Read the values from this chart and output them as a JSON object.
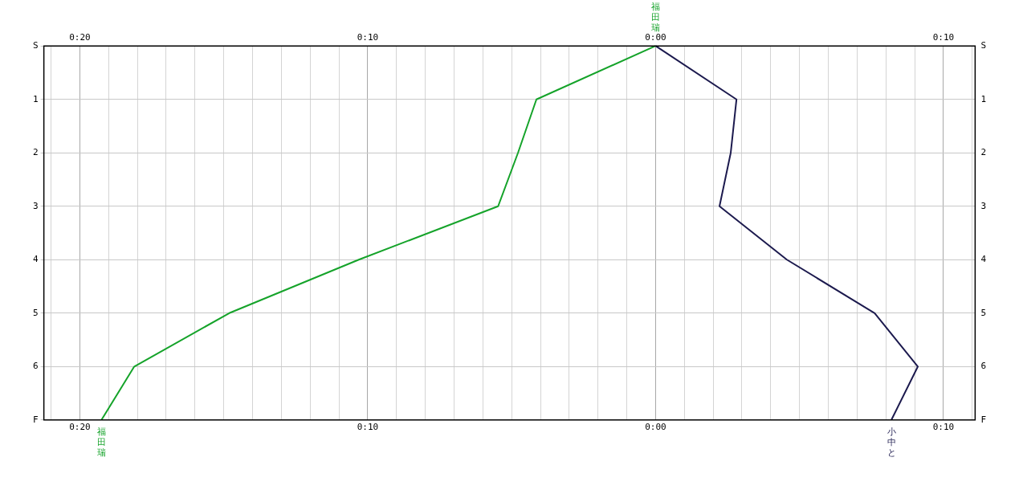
{
  "chart_data": {
    "type": "line",
    "orientation": "horizontal",
    "annotations": [
      {
        "text": "福田瑞",
        "x": 0,
        "y": "S"
      }
    ],
    "categories": [
      "S",
      "1",
      "2",
      "3",
      "4",
      "5",
      "6",
      "F"
    ],
    "xlim": [
      -21.25,
      11.1
    ],
    "xticks": [
      {
        "value": -21,
        "label": null
      },
      {
        "value": -20,
        "label": "0:20"
      },
      {
        "value": -19,
        "label": null
      },
      {
        "value": -18,
        "label": null
      },
      {
        "value": -17,
        "label": null
      },
      {
        "value": -16,
        "label": null
      },
      {
        "value": -15,
        "label": null
      },
      {
        "value": -14,
        "label": null
      },
      {
        "value": -13,
        "label": null
      },
      {
        "value": -12,
        "label": null
      },
      {
        "value": -11,
        "label": null
      },
      {
        "value": -10,
        "label": "0:10"
      },
      {
        "value": -9,
        "label": null
      },
      {
        "value": -8,
        "label": null
      },
      {
        "value": -7,
        "label": null
      },
      {
        "value": -6,
        "label": null
      },
      {
        "value": -5,
        "label": null
      },
      {
        "value": -4,
        "label": null
      },
      {
        "value": -3,
        "label": null
      },
      {
        "value": -2,
        "label": null
      },
      {
        "value": -1,
        "label": null
      },
      {
        "value": 0,
        "label": "0:00"
      },
      {
        "value": 1,
        "label": null
      },
      {
        "value": 2,
        "label": null
      },
      {
        "value": 3,
        "label": null
      },
      {
        "value": 4,
        "label": null
      },
      {
        "value": 5,
        "label": null
      },
      {
        "value": 6,
        "label": null
      },
      {
        "value": 7,
        "label": null
      },
      {
        "value": 8,
        "label": null
      },
      {
        "value": 9,
        "label": null
      },
      {
        "value": 10,
        "label": "0:10"
      },
      {
        "value": 11,
        "label": null
      }
    ],
    "x2lim": [
      -21.25,
      11.1
    ],
    "x2ticks": [
      {
        "value": -20,
        "label": "0:20"
      },
      {
        "value": -10,
        "label": "0:10"
      },
      {
        "value": 0,
        "label": "0:00"
      },
      {
        "value": 10,
        "label": "0:10"
      }
    ],
    "grid": true,
    "marker": "none",
    "line_style": "solid",
    "series": [
      {
        "name": "福田瑞",
        "color": "#15a32a",
        "values": [
          0,
          -4.14,
          -4.78,
          -5.47,
          -10.31,
          -14.81,
          -18.11,
          -19.25
        ]
      },
      {
        "name": "小中と",
        "color": "#1c1a4e",
        "values": [
          0,
          2.81,
          2.61,
          2.22,
          4.56,
          7.61,
          9.11,
          8.19
        ]
      }
    ]
  }
}
